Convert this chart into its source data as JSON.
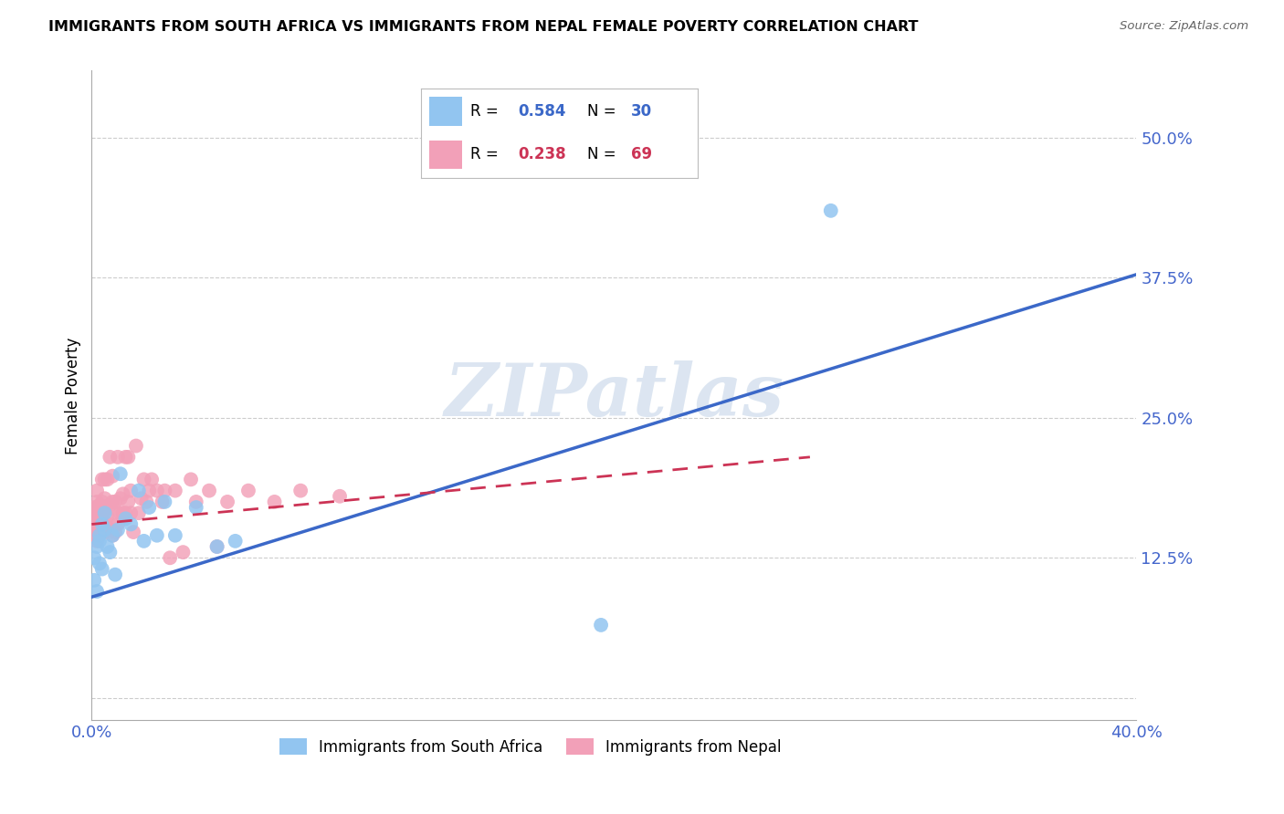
{
  "title": "IMMIGRANTS FROM SOUTH AFRICA VS IMMIGRANTS FROM NEPAL FEMALE POVERTY CORRELATION CHART",
  "source": "Source: ZipAtlas.com",
  "ylabel": "Female Poverty",
  "xlim": [
    0.0,
    0.4
  ],
  "ylim": [
    -0.02,
    0.56
  ],
  "yticks": [
    0.0,
    0.125,
    0.25,
    0.375,
    0.5
  ],
  "ytick_labels": [
    "",
    "12.5%",
    "25.0%",
    "37.5%",
    "50.0%"
  ],
  "xticks": [
    0.0,
    0.1,
    0.2,
    0.3,
    0.4
  ],
  "xtick_labels": [
    "0.0%",
    "",
    "",
    "",
    "40.0%"
  ],
  "south_africa_R": 0.584,
  "south_africa_N": 30,
  "nepal_R": 0.238,
  "nepal_N": 69,
  "south_africa_color": "#92c5f0",
  "nepal_color": "#f2a0b8",
  "trend_sa_color": "#3b68c8",
  "trend_nepal_color": "#cc3355",
  "watermark": "ZIPatlas",
  "watermark_color": "#c5d5e8",
  "sa_trend_x0": 0.0,
  "sa_trend_y0": 0.09,
  "sa_trend_x1": 0.4,
  "sa_trend_y1": 0.378,
  "nepal_trend_x0": 0.0,
  "nepal_trend_y0": 0.155,
  "nepal_trend_x1": 0.275,
  "nepal_trend_y1": 0.215,
  "sa_scatter_x": [
    0.001,
    0.001,
    0.002,
    0.002,
    0.003,
    0.003,
    0.003,
    0.004,
    0.004,
    0.005,
    0.005,
    0.006,
    0.007,
    0.008,
    0.009,
    0.01,
    0.011,
    0.013,
    0.015,
    0.018,
    0.02,
    0.022,
    0.025,
    0.028,
    0.032,
    0.04,
    0.048,
    0.055,
    0.283,
    0.195
  ],
  "sa_scatter_y": [
    0.105,
    0.125,
    0.135,
    0.095,
    0.14,
    0.145,
    0.12,
    0.115,
    0.155,
    0.15,
    0.165,
    0.135,
    0.13,
    0.145,
    0.11,
    0.15,
    0.2,
    0.16,
    0.155,
    0.185,
    0.14,
    0.17,
    0.145,
    0.175,
    0.145,
    0.17,
    0.135,
    0.14,
    0.435,
    0.065
  ],
  "nepal_scatter_x": [
    0.001,
    0.001,
    0.001,
    0.001,
    0.001,
    0.001,
    0.002,
    0.002,
    0.002,
    0.002,
    0.002,
    0.003,
    0.003,
    0.003,
    0.003,
    0.004,
    0.004,
    0.004,
    0.005,
    0.005,
    0.005,
    0.005,
    0.006,
    0.006,
    0.006,
    0.007,
    0.007,
    0.007,
    0.008,
    0.008,
    0.008,
    0.009,
    0.009,
    0.01,
    0.01,
    0.01,
    0.011,
    0.011,
    0.012,
    0.012,
    0.013,
    0.013,
    0.014,
    0.014,
    0.015,
    0.015,
    0.016,
    0.017,
    0.018,
    0.019,
    0.02,
    0.021,
    0.022,
    0.023,
    0.025,
    0.027,
    0.028,
    0.03,
    0.032,
    0.035,
    0.038,
    0.04,
    0.045,
    0.048,
    0.052,
    0.06,
    0.07,
    0.08,
    0.095
  ],
  "nepal_scatter_y": [
    0.16,
    0.155,
    0.145,
    0.17,
    0.15,
    0.165,
    0.14,
    0.175,
    0.158,
    0.168,
    0.185,
    0.148,
    0.165,
    0.172,
    0.155,
    0.162,
    0.175,
    0.195,
    0.148,
    0.168,
    0.178,
    0.195,
    0.152,
    0.162,
    0.195,
    0.155,
    0.172,
    0.215,
    0.145,
    0.175,
    0.198,
    0.148,
    0.175,
    0.155,
    0.165,
    0.215,
    0.165,
    0.178,
    0.165,
    0.182,
    0.165,
    0.215,
    0.175,
    0.215,
    0.185,
    0.165,
    0.148,
    0.225,
    0.165,
    0.178,
    0.195,
    0.175,
    0.185,
    0.195,
    0.185,
    0.175,
    0.185,
    0.125,
    0.185,
    0.13,
    0.195,
    0.175,
    0.185,
    0.135,
    0.175,
    0.185,
    0.175,
    0.185,
    0.18
  ]
}
